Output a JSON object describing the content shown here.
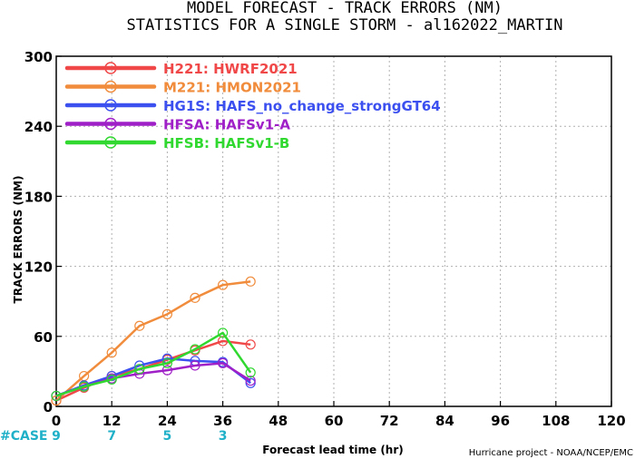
{
  "chart_data": {
    "type": "line",
    "title": "MODEL FORECAST - TRACK ERRORS (NM)",
    "subtitle": "STATISTICS FOR A SINGLE STORM - al162022_MARTIN",
    "xlabel": "Forecast lead time (hr)",
    "ylabel": "TRACK ERRORS (NM)",
    "xlim": [
      0,
      120
    ],
    "ylim": [
      0,
      300
    ],
    "x_ticks": [
      0,
      12,
      24,
      36,
      48,
      60,
      72,
      84,
      96,
      108,
      120
    ],
    "y_ticks": [
      0,
      60,
      120,
      180,
      240,
      300
    ],
    "x_tick_labels": [
      "0",
      "12",
      "24",
      "36",
      "48",
      "60",
      "72",
      "84",
      "96",
      "108",
      "120"
    ],
    "y_tick_labels": [
      "0",
      "60",
      "120",
      "180",
      "240",
      "300"
    ],
    "grid": true,
    "legend_position": "top-left",
    "x": [
      0,
      6,
      12,
      18,
      24,
      30,
      36,
      42
    ],
    "series": [
      {
        "code": "H221",
        "name": "HWRF2021",
        "color": "#f04848",
        "values": [
          5,
          16,
          26,
          32,
          40,
          48,
          56,
          53
        ]
      },
      {
        "code": "M221",
        "name": "HMON2021",
        "color": "#f08c3c",
        "values": [
          5,
          26,
          46,
          69,
          79,
          93,
          104,
          107
        ]
      },
      {
        "code": "HG1S",
        "name": "HAFS_no_change_strongGT64",
        "color": "#3c50f0",
        "values": [
          9,
          18,
          26,
          35,
          41,
          39,
          38,
          20
        ]
      },
      {
        "code": "HFSA",
        "name": "HAFSv1-A",
        "color": "#a020c8",
        "values": [
          9,
          17,
          24,
          28,
          31,
          35,
          37,
          22
        ]
      },
      {
        "code": "HFSB",
        "name": "HAFSv1-B",
        "color": "#30d830",
        "values": [
          9,
          17,
          23,
          32,
          37,
          49,
          63,
          29
        ]
      }
    ],
    "cases": {
      "label": "#CASE",
      "entries": [
        {
          "x": 0,
          "count": "9"
        },
        {
          "x": 12,
          "count": "7"
        },
        {
          "x": 24,
          "count": "5"
        },
        {
          "x": 36,
          "count": "3"
        }
      ]
    },
    "credit": "Hurricane project - NOAA/NCEP/EMC"
  }
}
